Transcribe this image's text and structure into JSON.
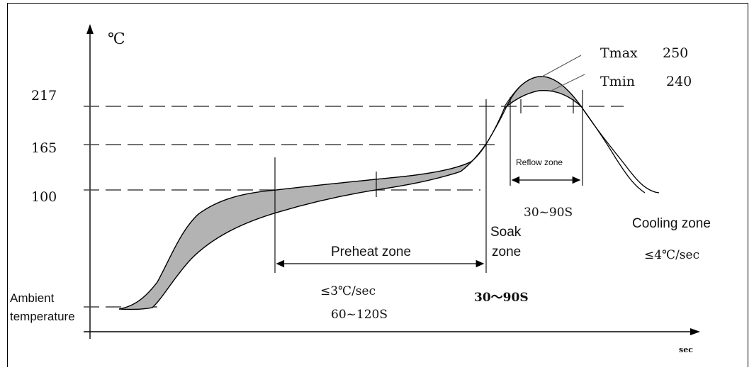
{
  "y_unit": "℃",
  "x_unit": "sec",
  "y_ticks": [
    "217",
    "165",
    "100"
  ],
  "labels": {
    "ambient_line1": "Ambient",
    "ambient_line2": "temperature",
    "preheat_zone": "Preheat zone",
    "preheat_rate": "≤3℃/sec",
    "preheat_time": "60~120S",
    "soak_line1": "Soak",
    "soak_line2": "zone",
    "soak_time": "30～90S",
    "reflow_zone": "Reflow zone",
    "reflow_time": "30~90S",
    "cooling_zone": "Cooling zone",
    "cooling_rate": "≤4℃/sec",
    "tmax_label": "Tmax",
    "tmax_value": "250",
    "tmin_label": "Tmin",
    "tmin_value": "240"
  },
  "colors": {
    "line": "#000000",
    "band_fill": "#b3b3b3",
    "grid_dash": "#444444",
    "text": "#111111"
  }
}
